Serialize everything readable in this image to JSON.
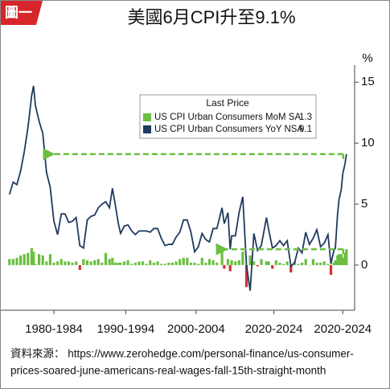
{
  "tag": "圖一",
  "chart_data": {
    "type": "combo",
    "title": "美國6月CPI升至9.1%",
    "y_label": "%",
    "legend_title": "Last Price",
    "x": [
      1977,
      1977.5,
      1978,
      1978.5,
      1979,
      1979.5,
      1980,
      1980.25,
      1980.5,
      1981,
      1981.5,
      1982,
      1982.5,
      1983,
      1983.5,
      1984,
      1984.5,
      1985,
      1985.5,
      1986,
      1986.5,
      1987,
      1987.5,
      1988,
      1988.5,
      1989,
      1989.5,
      1990,
      1990.5,
      1990.9,
      1991.3,
      1991.7,
      1992,
      1992.5,
      1993,
      1993.5,
      1994,
      1994.5,
      1995,
      1995.5,
      1996,
      1996.5,
      1997,
      1997.5,
      1998,
      1998.5,
      1999,
      1999.5,
      2000,
      2000.5,
      2001,
      2001.5,
      2002,
      2002.5,
      2003,
      2003.5,
      2004,
      2004.5,
      2005,
      2005.7,
      2006,
      2006.5,
      2006.8,
      2007,
      2007.5,
      2008,
      2008.5,
      2009,
      2009.5,
      2010,
      2010.5,
      2011,
      2011.7,
      2012,
      2012.5,
      2013,
      2013.5,
      2014,
      2014.5,
      2015,
      2015.5,
      2016,
      2016.5,
      2017,
      2017.5,
      2018,
      2018.5,
      2019,
      2019.5,
      2020,
      2020.4,
      2020.8,
      2021,
      2021.3,
      2021.5,
      2021.8,
      2022,
      2022.3,
      2022.5
    ],
    "series": [
      {
        "name": "US CPI Urban Consumers MoM SA",
        "type": "bar",
        "color": "#6abf3f",
        "negative_color": "#d32f2f",
        "values": [
          0.5,
          0.5,
          0.6,
          0.8,
          0.9,
          1.0,
          1.4,
          1.1,
          0.1,
          0.9,
          0.8,
          0.3,
          0.9,
          0.2,
          0.3,
          0.5,
          0.3,
          0.3,
          0.2,
          0.3,
          -0.4,
          0.5,
          0.4,
          0.3,
          0.4,
          0.5,
          0.2,
          1.0,
          0.5,
          0.6,
          0.2,
          0.2,
          0.2,
          0.3,
          0.4,
          0.1,
          0.2,
          0.3,
          0.3,
          0.1,
          0.4,
          0.2,
          0.3,
          0.1,
          0.1,
          0.2,
          0.2,
          0.3,
          0.5,
          0.6,
          0.6,
          0.2,
          0.2,
          0.1,
          0.6,
          0.2,
          0.5,
          0.4,
          0.2,
          1.2,
          -0.3,
          0.5,
          -0.5,
          0.4,
          0.3,
          0.4,
          1.1,
          -1.8,
          0.8,
          0.3,
          -0.1,
          0.5,
          0.3,
          0.3,
          -0.3,
          0.4,
          0.2,
          0.1,
          0.3,
          -0.6,
          0.3,
          0.1,
          0.2,
          0.5,
          0.0,
          0.5,
          0.2,
          0.2,
          0.3,
          0.1,
          -0.8,
          0.2,
          0.4,
          0.8,
          0.9,
          0.9,
          0.6,
          1.0,
          1.3
        ]
      },
      {
        "name": "US CPI Urban Consumers YoY NSA",
        "type": "line",
        "color": "#1f3a5f",
        "values": [
          5.8,
          6.8,
          6.6,
          7.7,
          9.3,
          11.3,
          13.9,
          14.7,
          13.1,
          11.8,
          10.8,
          7.6,
          6.4,
          3.6,
          2.5,
          4.2,
          4.2,
          3.5,
          3.6,
          3.9,
          1.6,
          1.4,
          3.7,
          4.0,
          4.1,
          4.7,
          5.0,
          5.2,
          4.7,
          6.3,
          4.9,
          3.4,
          2.6,
          3.2,
          3.3,
          2.8,
          2.5,
          2.8,
          2.8,
          2.8,
          2.7,
          3.0,
          3.0,
          2.2,
          1.6,
          1.7,
          1.7,
          2.3,
          2.7,
          3.7,
          3.7,
          2.7,
          1.1,
          1.5,
          2.6,
          2.1,
          1.9,
          3.0,
          3.0,
          4.7,
          3.4,
          4.3,
          1.3,
          2.4,
          2.4,
          4.3,
          5.6,
          0.0,
          -2.1,
          2.6,
          1.2,
          1.6,
          3.9,
          2.9,
          1.4,
          1.6,
          2.0,
          1.6,
          2.0,
          -0.1,
          0.2,
          1.4,
          1.0,
          2.7,
          1.7,
          2.2,
          2.9,
          1.5,
          1.8,
          2.5,
          0.1,
          1.2,
          1.4,
          4.2,
          5.4,
          6.2,
          7.5,
          8.3,
          9.1
        ]
      }
    ],
    "xlim": [
      1976.7,
      2023.6
    ],
    "xticks": [
      {
        "value": 1983,
        "label": "1980-1984"
      },
      {
        "value": 1992.7,
        "label": "1990-1994"
      },
      {
        "value": 2002.2,
        "label": "2000-2004"
      },
      {
        "value": 2012.7,
        "label": "2020-2024"
      },
      {
        "value": 2022,
        "label": "2020-2024"
      }
    ],
    "ylim": [
      -3.7,
      16.4
    ],
    "yticks": [
      15,
      10,
      5,
      0
    ]
  },
  "source": [
    "資料來源： https://www.zerohedge.com/personal-finance/us-consumer-",
    "prices-soared-june-americans-real-wages-fall-15th-straight-month"
  ]
}
